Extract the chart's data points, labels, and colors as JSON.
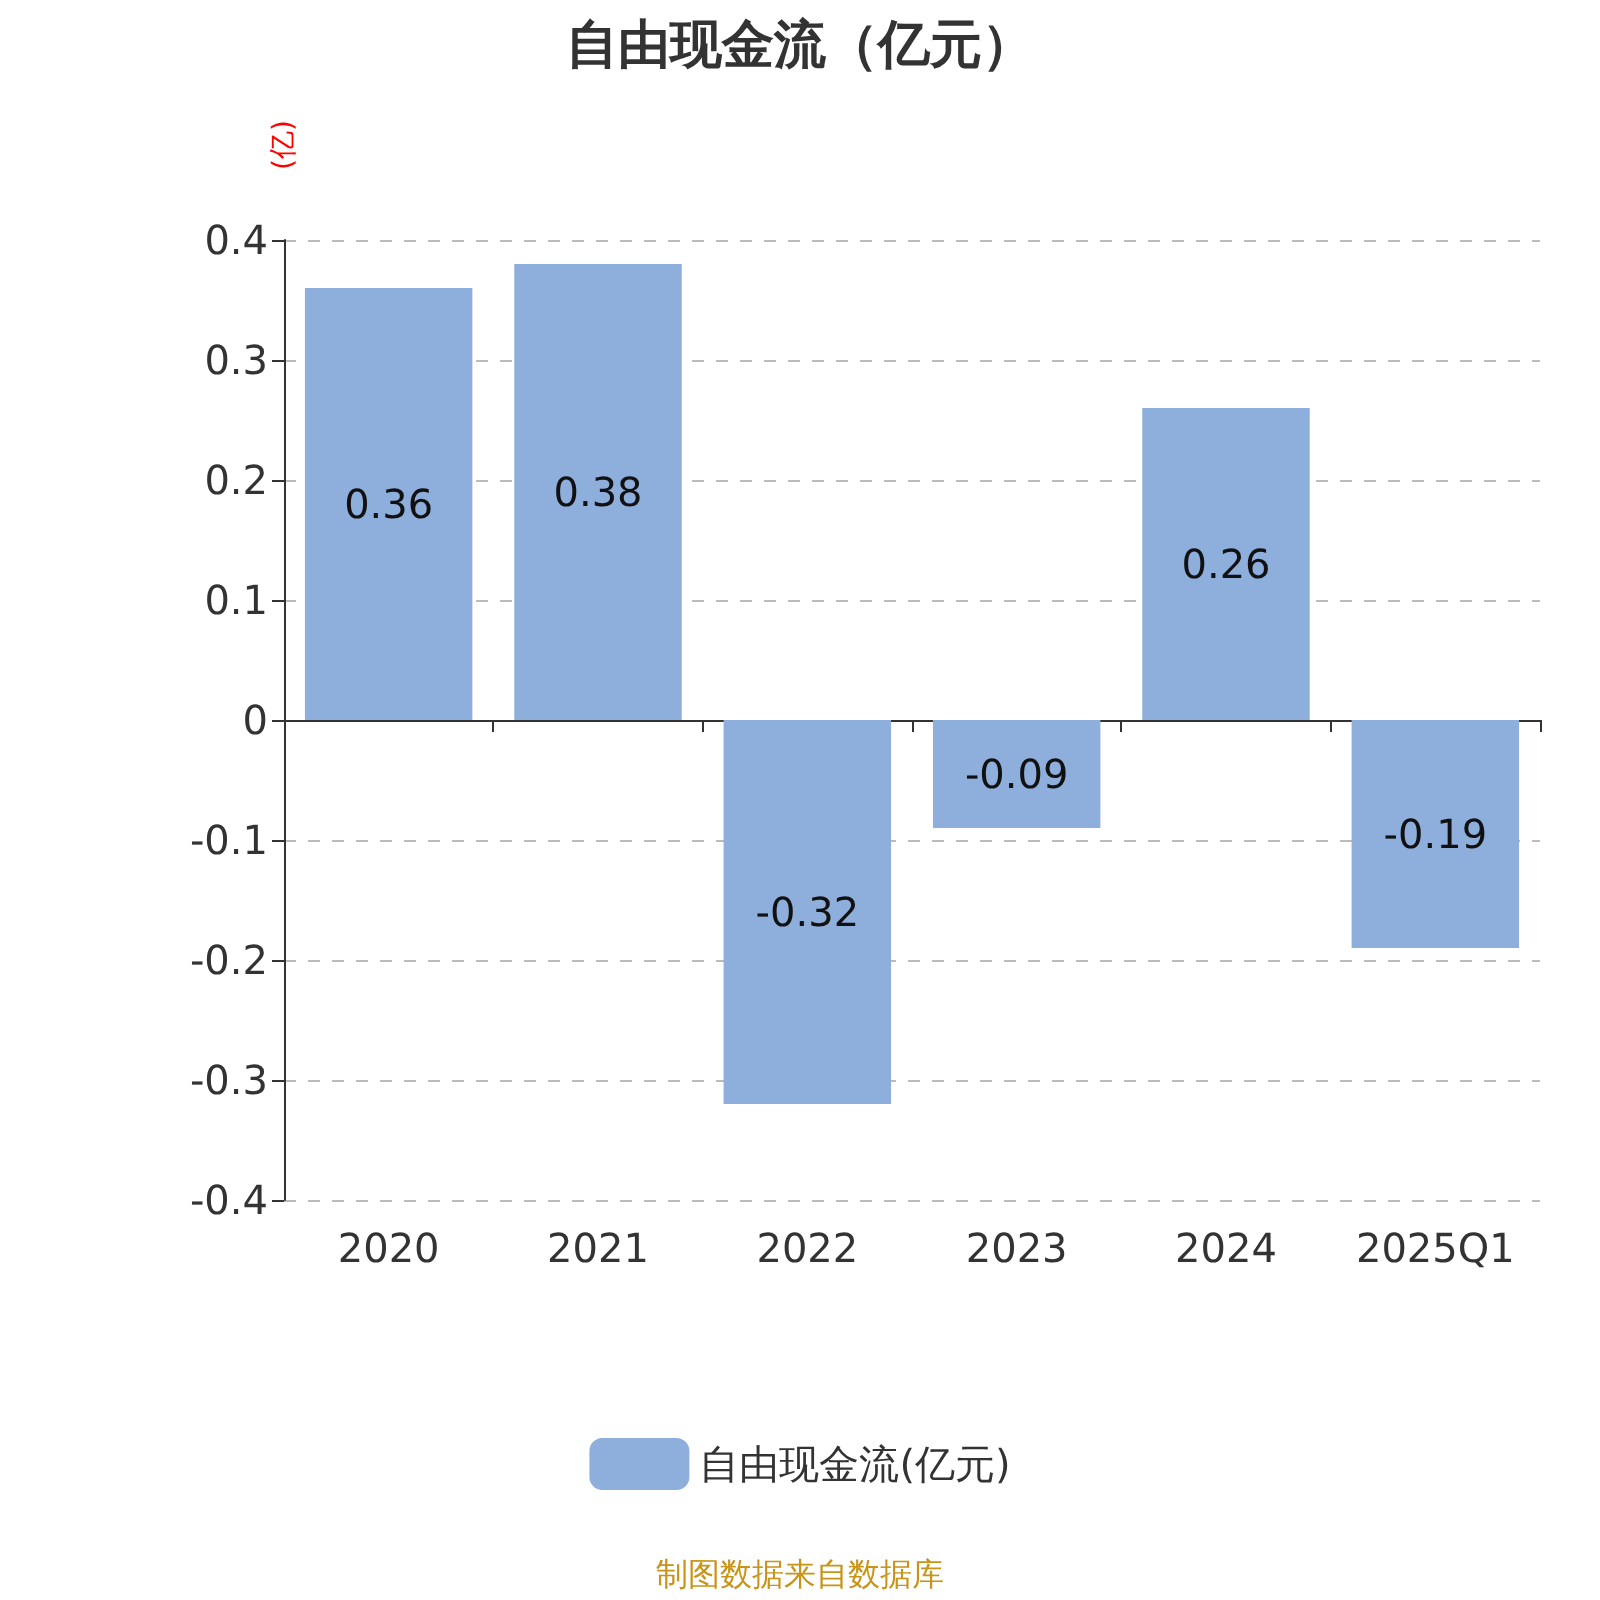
{
  "chart_data": {
    "type": "bar",
    "title": "自由现金流（亿元）",
    "ylabel": "(亿)",
    "categories": [
      "2020",
      "2021",
      "2022",
      "2023",
      "2024",
      "2025Q1"
    ],
    "series": [
      {
        "name": "自由现金流(亿元)",
        "color": "#8eaedb",
        "values": [
          0.36,
          0.38,
          -0.32,
          -0.09,
          0.26,
          -0.19
        ]
      }
    ],
    "ylim": [
      -0.4,
      0.4
    ],
    "yticks": [
      -0.4,
      -0.3,
      -0.2,
      -0.1,
      0,
      0.1,
      0.2,
      0.3,
      0.4
    ],
    "grid": "y",
    "legend": "bottom",
    "data_labels": true,
    "annotations": [
      "制图数据来自数据库"
    ]
  }
}
